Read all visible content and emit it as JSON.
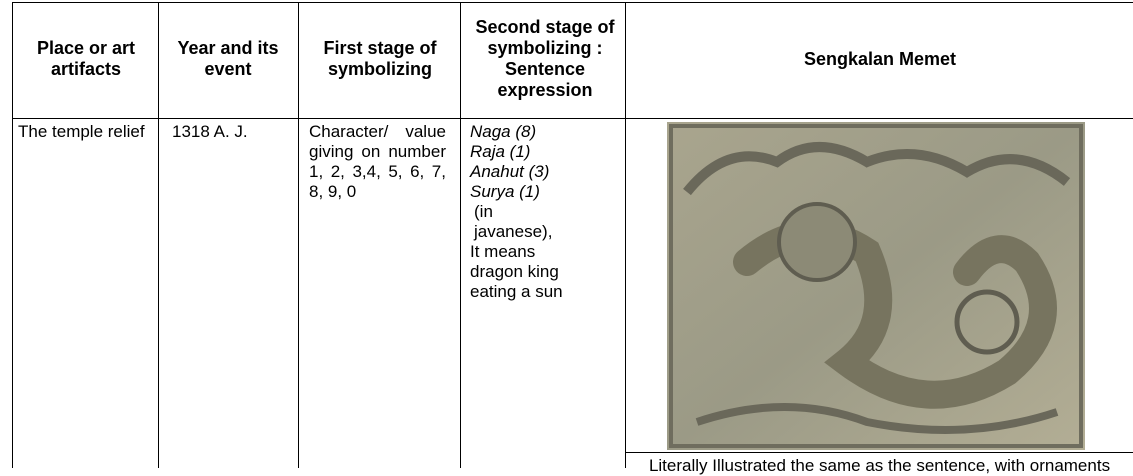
{
  "table": {
    "header": [
      "Place or art artifacts",
      "Year and its event",
      "First stage of symbolizing",
      "Second stage of symbolizing : Sentence expression",
      "Sengkalan Memet"
    ],
    "row": {
      "place": "The temple relief",
      "year": "1318 A. J.",
      "first_stage": "Character/ value giving on number 1, 2, 3,4, 5, 6, 7, 8, 9, 0",
      "second_stage_words": [
        "Naga (8)",
        "Raja (1)",
        "Anahut (3)",
        "Surya (1)"
      ],
      "second_stage_notes": [
        "(in javanese),",
        "It means dragon king eating a sun"
      ],
      "caption": "Literally Illustrated the same as the sentence, with ornaments"
    }
  }
}
